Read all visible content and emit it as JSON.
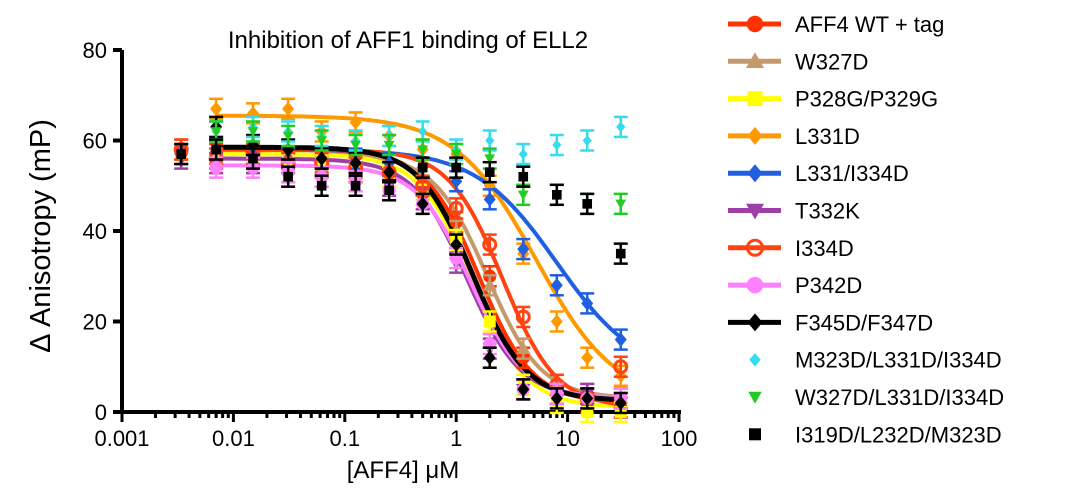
{
  "chart_data": {
    "type": "scatter",
    "title": "Inhibition of AFF1 binding of ELL2",
    "xlabel": "[AFF4] μM",
    "ylabel": "Δ Anisotropy (mP)",
    "x_scale": "log",
    "xlim": [
      0.001,
      100
    ],
    "ylim": [
      0,
      80
    ],
    "x_ticks": [
      0.001,
      0.01,
      0.1,
      1,
      10,
      100
    ],
    "x_tick_labels": [
      "0.001",
      "0.01",
      "0.1",
      "1",
      "10",
      "100"
    ],
    "y_ticks": [
      0,
      20,
      40,
      60,
      80
    ],
    "y_tick_labels": [
      "0",
      "20",
      "40",
      "60",
      "80"
    ],
    "grid": false,
    "legend_position": "right",
    "series": [
      {
        "name": "AFF4 WT + tag",
        "color": "#ff3300",
        "marker": "circle",
        "fit": {
          "top": 58,
          "bottom": 2,
          "ic50": 1.6
        },
        "points": [
          {
            "x": 0.0034,
            "y": 58
          },
          {
            "x": 0.007,
            "y": 57
          },
          {
            "x": 0.015,
            "y": 56
          },
          {
            "x": 0.031,
            "y": 55
          },
          {
            "x": 0.062,
            "y": 54
          },
          {
            "x": 0.125,
            "y": 53
          },
          {
            "x": 0.25,
            "y": 52
          },
          {
            "x": 0.5,
            "y": 50
          },
          {
            "x": 1,
            "y": 42
          },
          {
            "x": 2,
            "y": 30
          },
          {
            "x": 4,
            "y": 12
          },
          {
            "x": 8,
            "y": 4
          },
          {
            "x": 15,
            "y": 2
          },
          {
            "x": 30,
            "y": 1
          }
        ]
      },
      {
        "name": "W327D",
        "color": "#c49a6c",
        "marker": "triangle",
        "fit": {
          "top": 57,
          "bottom": 3,
          "ic50": 1.9
        },
        "points": [
          {
            "x": 0.0034,
            "y": 57
          },
          {
            "x": 0.007,
            "y": 56
          },
          {
            "x": 0.015,
            "y": 55
          },
          {
            "x": 0.031,
            "y": 55
          },
          {
            "x": 0.062,
            "y": 54
          },
          {
            "x": 0.125,
            "y": 54
          },
          {
            "x": 0.25,
            "y": 52
          },
          {
            "x": 0.5,
            "y": 48
          },
          {
            "x": 1,
            "y": 40
          },
          {
            "x": 2,
            "y": 28
          },
          {
            "x": 4,
            "y": 14
          },
          {
            "x": 8,
            "y": 6
          },
          {
            "x": 15,
            "y": 4
          },
          {
            "x": 30,
            "y": 3
          }
        ]
      },
      {
        "name": "P328G/P329G",
        "color": "#ffff00",
        "marker": "square",
        "fit": {
          "top": 57,
          "bottom": 1,
          "ic50": 1.4
        },
        "points": [
          {
            "x": 0.0034,
            "y": 57
          },
          {
            "x": 0.007,
            "y": 56
          },
          {
            "x": 0.015,
            "y": 56
          },
          {
            "x": 0.031,
            "y": 55
          },
          {
            "x": 0.062,
            "y": 55
          },
          {
            "x": 0.125,
            "y": 54
          },
          {
            "x": 0.25,
            "y": 52
          },
          {
            "x": 0.5,
            "y": 48
          },
          {
            "x": 1,
            "y": 38
          },
          {
            "x": 2,
            "y": 20
          },
          {
            "x": 4,
            "y": 6
          },
          {
            "x": 8,
            "y": 2
          },
          {
            "x": 15,
            "y": 0
          },
          {
            "x": 30,
            "y": 0
          }
        ]
      },
      {
        "name": "L331D",
        "color": "#ff9900",
        "marker": "diamond",
        "fit": {
          "top": 65.5,
          "bottom": 2,
          "ic50": 5.2
        },
        "points": [
          {
            "x": 0.007,
            "y": 67
          },
          {
            "x": 0.015,
            "y": 66
          },
          {
            "x": 0.031,
            "y": 67
          },
          {
            "x": 0.062,
            "y": 62
          },
          {
            "x": 0.125,
            "y": 64
          },
          {
            "x": 0.25,
            "y": 61
          },
          {
            "x": 0.5,
            "y": 58
          },
          {
            "x": 1,
            "y": 57
          },
          {
            "x": 2,
            "y": 50
          },
          {
            "x": 4,
            "y": 35
          },
          {
            "x": 8,
            "y": 20
          },
          {
            "x": 15,
            "y": 12
          },
          {
            "x": 30,
            "y": 8
          }
        ]
      },
      {
        "name": "L331/I334D",
        "color": "#1f5fe0",
        "marker": "diamond",
        "fit": {
          "top": 58,
          "bottom": 8,
          "ic50": 8
        },
        "points": [
          {
            "x": 0.0034,
            "y": 57
          },
          {
            "x": 0.007,
            "y": 58
          },
          {
            "x": 0.015,
            "y": 57
          },
          {
            "x": 0.031,
            "y": 56
          },
          {
            "x": 0.062,
            "y": 56
          },
          {
            "x": 0.125,
            "y": 56
          },
          {
            "x": 0.25,
            "y": 55
          },
          {
            "x": 0.5,
            "y": 54
          },
          {
            "x": 1,
            "y": 51
          },
          {
            "x": 2,
            "y": 47
          },
          {
            "x": 4,
            "y": 36
          },
          {
            "x": 8,
            "y": 28
          },
          {
            "x": 15,
            "y": 24
          },
          {
            "x": 30,
            "y": 16
          }
        ]
      },
      {
        "name": "T332K",
        "color": "#9e3fa6",
        "marker": "triangle-down",
        "fit": {
          "top": 56,
          "bottom": 3,
          "ic50": 1.25
        },
        "points": [
          {
            "x": 0.0034,
            "y": 56
          },
          {
            "x": 0.007,
            "y": 55
          },
          {
            "x": 0.015,
            "y": 55
          },
          {
            "x": 0.031,
            "y": 53
          },
          {
            "x": 0.062,
            "y": 52
          },
          {
            "x": 0.125,
            "y": 51
          },
          {
            "x": 0.25,
            "y": 50
          },
          {
            "x": 0.5,
            "y": 47
          },
          {
            "x": 1,
            "y": 33
          },
          {
            "x": 2,
            "y": 14
          },
          {
            "x": 4,
            "y": 5
          },
          {
            "x": 8,
            "y": 4
          },
          {
            "x": 15,
            "y": 4
          },
          {
            "x": 30,
            "y": 3
          }
        ]
      },
      {
        "name": "I334D",
        "color": "#ff4411",
        "marker": "circle-open",
        "fit": {
          "top": 58,
          "bottom": 1,
          "ic50": 2.6
        },
        "points": [
          {
            "x": 0.0034,
            "y": 58
          },
          {
            "x": 0.007,
            "y": 56
          },
          {
            "x": 0.015,
            "y": 57
          },
          {
            "x": 0.031,
            "y": 55
          },
          {
            "x": 0.062,
            "y": 55
          },
          {
            "x": 0.125,
            "y": 54
          },
          {
            "x": 0.25,
            "y": 53
          },
          {
            "x": 0.5,
            "y": 50
          },
          {
            "x": 1,
            "y": 45
          },
          {
            "x": 2,
            "y": 37
          },
          {
            "x": 4,
            "y": 21
          },
          {
            "x": 8,
            "y": 6
          },
          {
            "x": 15,
            "y": 3
          },
          {
            "x": 30,
            "y": 10
          }
        ]
      },
      {
        "name": "P342D",
        "color": "#ff7fff",
        "marker": "circle",
        "fit": {
          "top": 54.5,
          "bottom": 3,
          "ic50": 1.35
        },
        "points": [
          {
            "x": 0.007,
            "y": 54
          },
          {
            "x": 0.015,
            "y": 54
          },
          {
            "x": 0.031,
            "y": 53
          },
          {
            "x": 0.062,
            "y": 52
          },
          {
            "x": 0.125,
            "y": 51
          },
          {
            "x": 0.25,
            "y": 49
          },
          {
            "x": 0.5,
            "y": 46
          },
          {
            "x": 1,
            "y": 34
          },
          {
            "x": 2,
            "y": 15
          },
          {
            "x": 4,
            "y": 5
          },
          {
            "x": 8,
            "y": 4
          },
          {
            "x": 15,
            "y": 3
          },
          {
            "x": 30,
            "y": 3
          }
        ]
      },
      {
        "name": "F345D/F347D",
        "color": "#000000",
        "marker": "diamond",
        "fit": {
          "top": 58.5,
          "bottom": 2.5,
          "ic50": 1.4
        },
        "points": [
          {
            "x": 0.007,
            "y": 63
          },
          {
            "x": 0.015,
            "y": 59
          },
          {
            "x": 0.031,
            "y": 58
          },
          {
            "x": 0.062,
            "y": 56
          },
          {
            "x": 0.125,
            "y": 55
          },
          {
            "x": 0.25,
            "y": 53
          },
          {
            "x": 0.5,
            "y": 46
          },
          {
            "x": 1,
            "y": 37
          },
          {
            "x": 2,
            "y": 12
          },
          {
            "x": 4,
            "y": 5
          },
          {
            "x": 8,
            "y": 3
          },
          {
            "x": 15,
            "y": 3
          },
          {
            "x": 30,
            "y": 2
          }
        ]
      },
      {
        "name": "M323D/L331D/I334D",
        "color": "#33ddee",
        "marker": "diamond-small",
        "fit": null,
        "points": [
          {
            "x": 0.007,
            "y": 62
          },
          {
            "x": 0.015,
            "y": 63
          },
          {
            "x": 0.031,
            "y": 62
          },
          {
            "x": 0.062,
            "y": 61
          },
          {
            "x": 0.125,
            "y": 60
          },
          {
            "x": 0.25,
            "y": 61
          },
          {
            "x": 0.5,
            "y": 62
          },
          {
            "x": 1,
            "y": 58
          },
          {
            "x": 2,
            "y": 60
          },
          {
            "x": 4,
            "y": 57
          },
          {
            "x": 8,
            "y": 59
          },
          {
            "x": 15,
            "y": 60
          },
          {
            "x": 30,
            "y": 63
          }
        ]
      },
      {
        "name": "W327D/L331D/I334D",
        "color": "#22cc22",
        "marker": "triangle-down-small",
        "fit": null,
        "points": [
          {
            "x": 0.007,
            "y": 62
          },
          {
            "x": 0.015,
            "y": 62
          },
          {
            "x": 0.031,
            "y": 61
          },
          {
            "x": 0.062,
            "y": 60
          },
          {
            "x": 0.125,
            "y": 59
          },
          {
            "x": 0.25,
            "y": 59
          },
          {
            "x": 0.5,
            "y": 58
          },
          {
            "x": 1,
            "y": 57
          },
          {
            "x": 2,
            "y": 56
          },
          {
            "x": 4,
            "y": 48
          },
          {
            "x": 8,
            "y": 48
          },
          {
            "x": 15,
            "y": 46
          },
          {
            "x": 30,
            "y": 46
          }
        ]
      },
      {
        "name": "I319D/L232D/M323D",
        "color": "#000000",
        "marker": "square-small",
        "fit": null,
        "points": [
          {
            "x": 0.0034,
            "y": 57
          },
          {
            "x": 0.007,
            "y": 58
          },
          {
            "x": 0.015,
            "y": 56
          },
          {
            "x": 0.031,
            "y": 52
          },
          {
            "x": 0.062,
            "y": 50
          },
          {
            "x": 0.125,
            "y": 50
          },
          {
            "x": 0.25,
            "y": 49
          },
          {
            "x": 0.5,
            "y": 54
          },
          {
            "x": 1,
            "y": 54
          },
          {
            "x": 2,
            "y": 53
          },
          {
            "x": 4,
            "y": 52
          },
          {
            "x": 8,
            "y": 48
          },
          {
            "x": 15,
            "y": 46
          },
          {
            "x": 30,
            "y": 35
          }
        ]
      }
    ]
  }
}
